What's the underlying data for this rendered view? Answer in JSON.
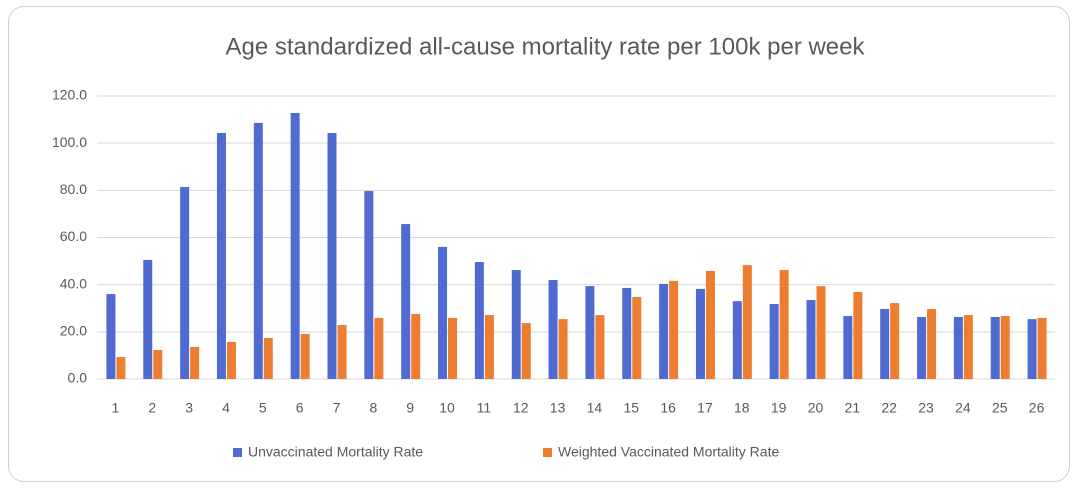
{
  "chart_data": {
    "type": "bar",
    "title": "Age standardized all-cause mortality rate per 100k per week",
    "categories": [
      "1",
      "2",
      "3",
      "4",
      "5",
      "6",
      "7",
      "8",
      "9",
      "10",
      "11",
      "12",
      "13",
      "14",
      "15",
      "16",
      "17",
      "18",
      "19",
      "20",
      "21",
      "22",
      "23",
      "24",
      "25",
      "26"
    ],
    "series": [
      {
        "name": "Unvaccinated Mortality Rate",
        "color": "#4f6bd1",
        "values": [
          36,
          50.5,
          81.4,
          104.3,
          108.6,
          112.8,
          104.3,
          79.7,
          65.7,
          56,
          49.6,
          46.2,
          42,
          39.4,
          38.6,
          40.3,
          38.2,
          33,
          31.8,
          33.5,
          26.7,
          29.7,
          26.3,
          26.3,
          26.3,
          25.4
        ]
      },
      {
        "name": "Weighted Vaccinated Mortality Rate",
        "color": "#ed7d31",
        "values": [
          9.3,
          12.3,
          13.6,
          15.7,
          17.4,
          19.1,
          22.9,
          25.9,
          27.6,
          25.9,
          27.1,
          23.7,
          25.4,
          27.1,
          34.8,
          41.6,
          45.8,
          48.3,
          46.2,
          39.4,
          36.9,
          32.2,
          29.7,
          27.1,
          26.7,
          25.9
        ]
      }
    ],
    "ylim": [
      0,
      120
    ],
    "yticks": [
      {
        "value": 0,
        "label": "0.0"
      },
      {
        "value": 20,
        "label": "20.0"
      },
      {
        "value": 40,
        "label": "40.0"
      },
      {
        "value": 60,
        "label": "60.0"
      },
      {
        "value": 80,
        "label": "80.0"
      },
      {
        "value": 100,
        "label": "100.0"
      },
      {
        "value": 120,
        "label": "120.0"
      }
    ],
    "grid": true,
    "legend": "bottom"
  }
}
